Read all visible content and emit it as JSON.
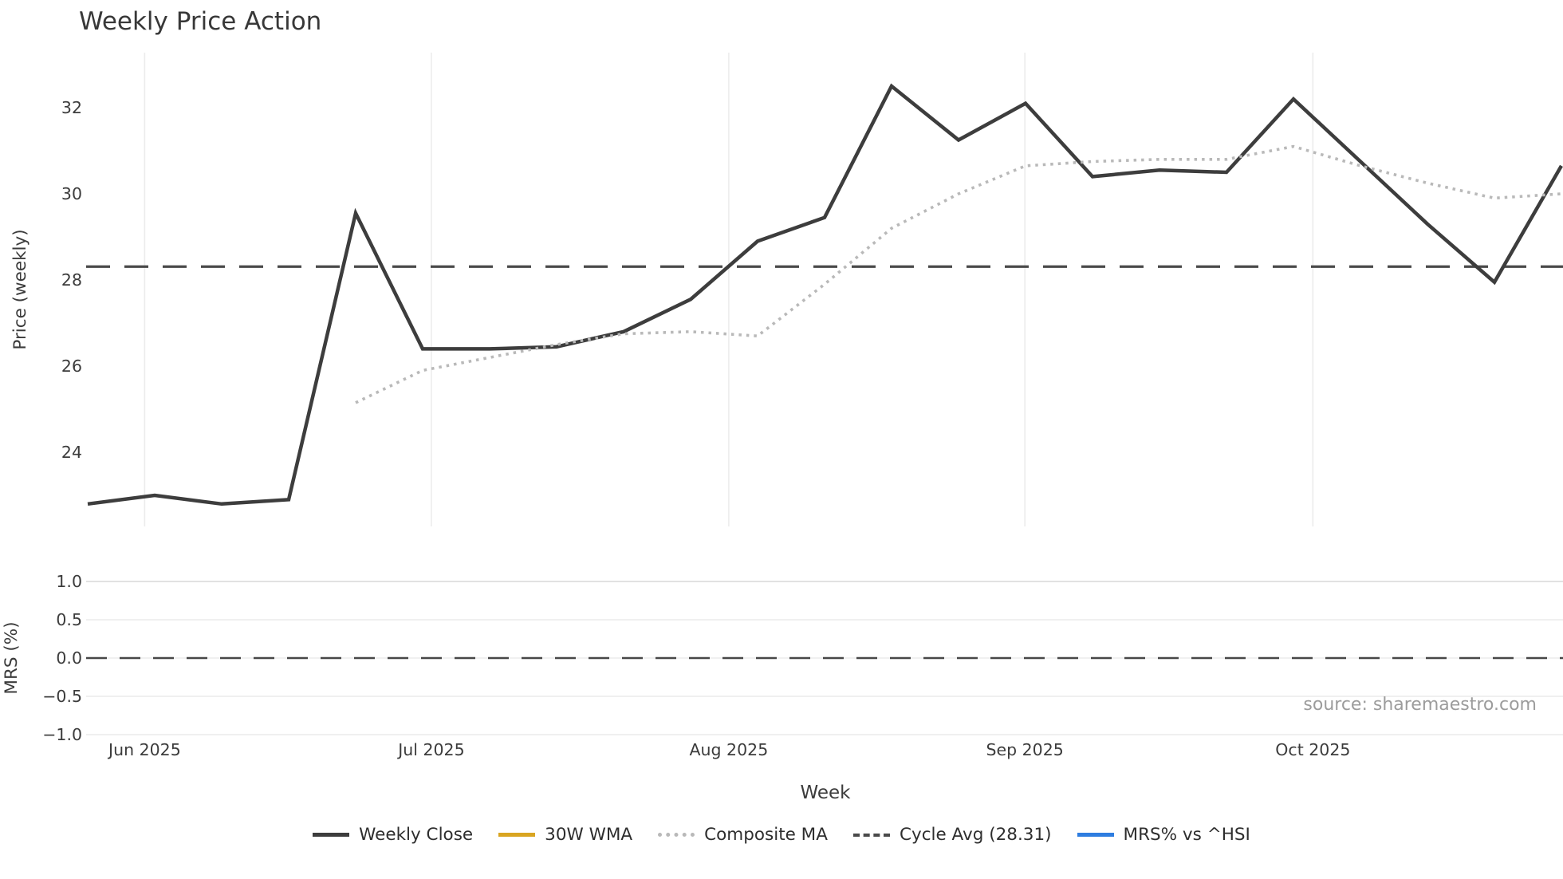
{
  "title": "Weekly Price Action",
  "source_note": "source: sharemaestro.com",
  "colors": {
    "weekly_close": "#3d3d3d",
    "wma_30w": "#d9a521",
    "composite_ma": "#b9b9b9",
    "cycle_avg": "#4a4a4a",
    "mrs": "#2e7de0",
    "gridline": "#ececec",
    "gridline_strong": "#d8d8d8"
  },
  "chart_data": [
    {
      "type": "line",
      "panel": "price",
      "title": "Weekly Price Action",
      "xlabel": "Week",
      "ylabel": "Price (weekly)",
      "x_tick_labels": [
        "Jun 2025",
        "Jul 2025",
        "Aug 2025",
        "Sep 2025",
        "Oct 2025"
      ],
      "x_tick_positions_weeks": [
        0.85,
        5.13,
        9.57,
        13.99,
        18.29
      ],
      "y_ticks": [
        24,
        26,
        28,
        30,
        32
      ],
      "ylim": [
        22.3,
        33.3
      ],
      "grid": "vertical-months",
      "legend_position": "bottom",
      "series": [
        {
          "name": "Weekly Close",
          "style": "solid",
          "color": "#3d3d3d",
          "values": [
            22.8,
            23.0,
            22.8,
            22.9,
            29.55,
            26.4,
            26.4,
            26.45,
            26.8,
            27.55,
            28.9,
            29.45,
            32.5,
            31.25,
            32.1,
            30.4,
            30.55,
            30.5,
            32.2,
            30.75,
            29.3,
            27.95,
            30.65
          ]
        },
        {
          "name": "30W WMA",
          "style": "solid",
          "color": "#d9a521",
          "values": []
        },
        {
          "name": "Composite MA",
          "style": "dotted",
          "color": "#b9b9b9",
          "values": [
            null,
            null,
            null,
            null,
            25.15,
            25.9,
            26.2,
            26.5,
            26.75,
            26.8,
            26.7,
            27.9,
            29.2,
            30.0,
            30.65,
            30.75,
            30.8,
            30.8,
            31.1,
            30.65,
            30.25,
            29.9,
            30.0
          ]
        },
        {
          "name": "Cycle Avg (28.31)",
          "style": "dashed",
          "color": "#4a4a4a",
          "constant_value": 28.31
        }
      ]
    },
    {
      "type": "line",
      "panel": "mrs",
      "ylabel": "MRS (%)",
      "y_ticks": [
        "1.0",
        "0.5",
        "0.0",
        "−0.5",
        "−1.0"
      ],
      "y_tick_values": [
        1.0,
        0.5,
        0.0,
        -0.5,
        -1.0
      ],
      "ylim": [
        -1.1,
        1.1
      ],
      "zero_line": 0.0,
      "grid": "horizontal",
      "series": [
        {
          "name": "MRS% vs ^HSI",
          "style": "solid",
          "color": "#2e7de0",
          "values": []
        }
      ]
    }
  ],
  "legend": {
    "items": [
      {
        "label": "Weekly Close",
        "style": "solid",
        "color": "#3d3d3d"
      },
      {
        "label": "30W WMA",
        "style": "solid",
        "color": "#d9a521"
      },
      {
        "label": "Composite MA",
        "style": "dotted",
        "color": "#b9b9b9"
      },
      {
        "label": "Cycle Avg (28.31)",
        "style": "dashed",
        "color": "#4a4a4a"
      },
      {
        "label": "MRS% vs ^HSI",
        "style": "solid",
        "color": "#2e7de0"
      }
    ]
  }
}
